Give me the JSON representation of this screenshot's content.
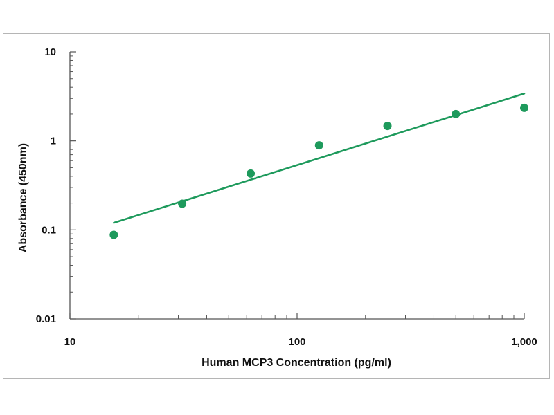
{
  "chart_data": {
    "type": "scatter",
    "title": "",
    "xlabel": "Human MCP3 Concentration (pg/ml)",
    "ylabel": "Absorbance (450nm)",
    "x_scale": "log",
    "y_scale": "log",
    "xlim": [
      10,
      1000
    ],
    "ylim": [
      0.01,
      10
    ],
    "x_ticks": [
      {
        "value": 10,
        "label": "10"
      },
      {
        "value": 100,
        "label": "100"
      },
      {
        "value": 1000,
        "label": "1,000"
      }
    ],
    "y_ticks": [
      {
        "value": 10,
        "label": "10"
      },
      {
        "value": 1,
        "label": "1"
      },
      {
        "value": 0.1,
        "label": "0.1"
      },
      {
        "value": 0.01,
        "label": "0.01"
      }
    ],
    "grid": false,
    "legend": "none",
    "color": "#1e9a5c",
    "series": [
      {
        "points": [
          {
            "x": 15.6,
            "y": 0.088
          },
          {
            "x": 31.2,
            "y": 0.197
          },
          {
            "x": 62.5,
            "y": 0.43
          },
          {
            "x": 125,
            "y": 0.89
          },
          {
            "x": 250,
            "y": 1.47
          },
          {
            "x": 500,
            "y": 2.0
          },
          {
            "x": 1000,
            "y": 2.35
          }
        ]
      }
    ],
    "fit_line": {
      "type": "power",
      "points": [
        {
          "x": 15.6,
          "y": 0.12
        },
        {
          "x": 1000,
          "y": 3.4
        }
      ]
    }
  }
}
